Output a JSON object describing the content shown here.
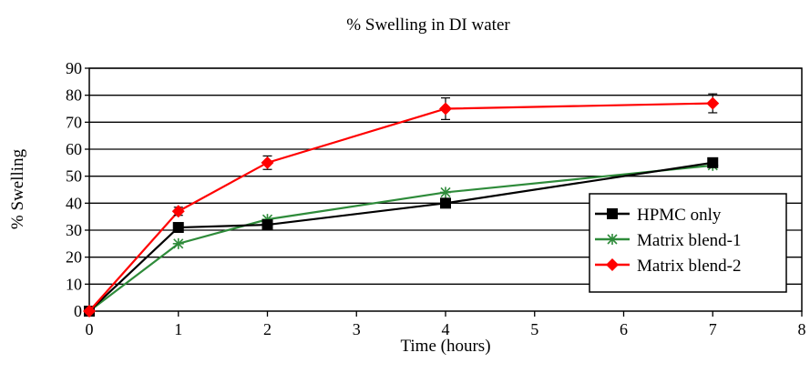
{
  "chart_data": {
    "type": "line",
    "title": "% Swelling in DI water",
    "xlabel": "Time (hours)",
    "ylabel": "% Swelling",
    "xlim": [
      0,
      8
    ],
    "ylim": [
      0,
      90
    ],
    "xticks": [
      0,
      1,
      2,
      3,
      4,
      5,
      6,
      7,
      8
    ],
    "yticks": [
      0,
      10,
      20,
      30,
      40,
      50,
      60,
      70,
      80,
      90
    ],
    "grid": "horizontal",
    "legend_position": "right",
    "series": [
      {
        "name": "HPMC only",
        "color": "#000000",
        "marker": "square",
        "x": [
          0,
          1,
          2,
          4,
          7
        ],
        "y": [
          0,
          31,
          32,
          40,
          55
        ]
      },
      {
        "name": "Matrix blend-1",
        "color": "#2e8b3a",
        "marker": "asterisk",
        "x": [
          0,
          1,
          2,
          4,
          7
        ],
        "y": [
          0,
          25,
          34,
          44,
          54
        ]
      },
      {
        "name": "Matrix blend-2",
        "color": "#ff0000",
        "marker": "diamond",
        "x": [
          0,
          1,
          2,
          4,
          7
        ],
        "y": [
          0,
          37,
          55,
          75,
          77
        ],
        "error": [
          0,
          1.5,
          2.5,
          4,
          3.5
        ]
      }
    ]
  }
}
